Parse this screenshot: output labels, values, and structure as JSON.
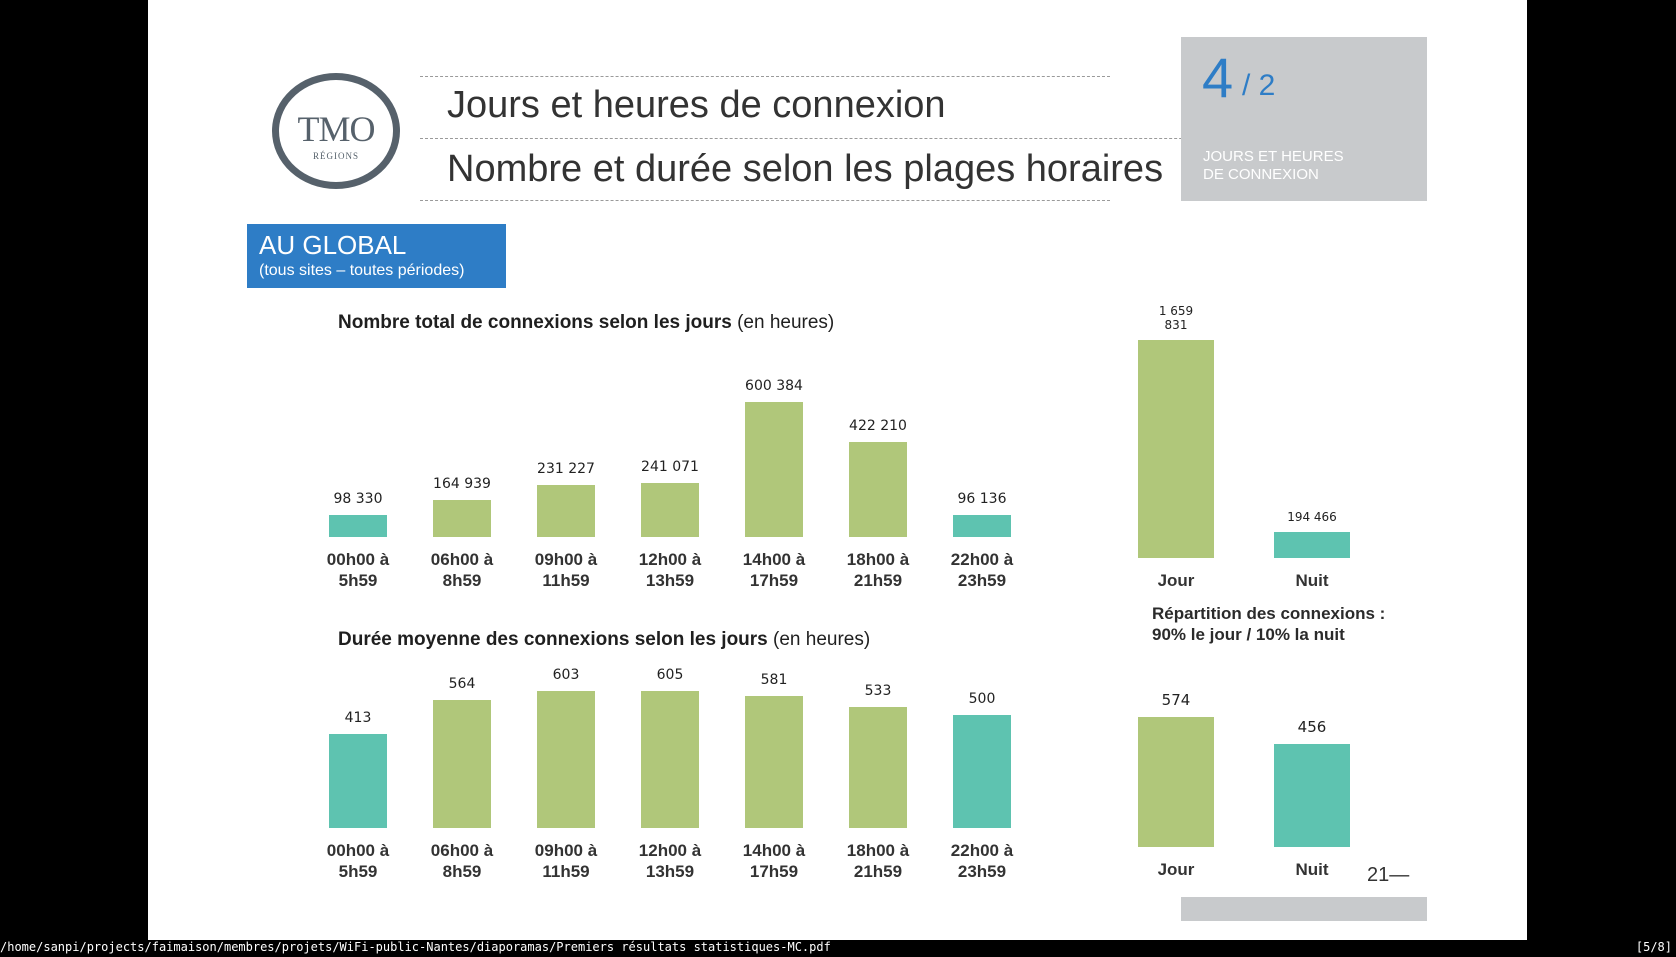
{
  "viewer": {
    "file_path": "/home/sanpi/projects/faimaison/membres/projets/WiFi-public-Nantes/diaporamas/Premiers résultats statistiques-MC.pdf",
    "page_indicator": "[5/8]"
  },
  "slide": {
    "logo": {
      "main": "TMO",
      "sub": "RÉGIONS"
    },
    "title_line1": "Jours et heures de connexion",
    "title_line2": "Nombre et durée selon les plages horaires",
    "section": {
      "number": "4",
      "total": "/ 2",
      "label_line1": "JOURS ET HEURES",
      "label_line2": "DE CONNEXION"
    },
    "global": {
      "title": "AU GLOBAL",
      "subtitle": "(tous sites – toutes périodes)"
    },
    "chart1_title_bold": "Nombre total de connexions selon les jours",
    "chart1_title_normal": " (en heures)",
    "chart2_title_bold": "Durée moyenne des connexions selon les jours",
    "chart2_title_normal": " (en heures)",
    "repartition_line1": "Répartition des connexions :",
    "repartition_line2": "90% le jour / 10% la nuit",
    "page_number": "21—"
  },
  "colors": {
    "green": "#b0c77a",
    "teal": "#5ec3b0",
    "blue": "#2e7dc6",
    "grey_box": "#c8cacc"
  },
  "chart_data": [
    {
      "type": "bar",
      "title": "Nombre total de connexions selon les jours (en heures)",
      "categories": [
        "00h00 à\n5h59",
        "06h00 à\n8h59",
        "09h00 à\n11h59",
        "12h00 à\n13h59",
        "14h00 à\n17h59",
        "18h00 à\n21h59",
        "22h00 à\n23h59"
      ],
      "values": [
        98330,
        164939,
        231227,
        241071,
        600384,
        422210,
        96136
      ],
      "value_labels": [
        "98 330",
        "164 939",
        "231 227",
        "241 071",
        "600 384",
        "422 210",
        "96 136"
      ],
      "bar_colors": [
        "teal",
        "green",
        "green",
        "green",
        "green",
        "green",
        "teal"
      ],
      "ylim": [
        0,
        600384
      ]
    },
    {
      "type": "bar",
      "title": "Durée moyenne des connexions selon les jours (en heures)",
      "categories": [
        "00h00 à\n5h59",
        "06h00 à\n8h59",
        "09h00 à\n11h59",
        "12h00 à\n13h59",
        "14h00 à\n17h59",
        "18h00 à\n21h59",
        "22h00 à\n23h59"
      ],
      "values": [
        413,
        564,
        603,
        605,
        581,
        533,
        500
      ],
      "value_labels": [
        "413",
        "564",
        "603",
        "605",
        "581",
        "533",
        "500"
      ],
      "bar_colors": [
        "teal",
        "green",
        "green",
        "green",
        "green",
        "green",
        "teal"
      ],
      "ylim": [
        0,
        605
      ]
    },
    {
      "type": "bar",
      "categories": [
        "Jour",
        "Nuit"
      ],
      "values": [
        1659831,
        194466
      ],
      "value_labels": [
        "1 659\n831",
        "194 466"
      ],
      "bar_colors": [
        "green",
        "teal"
      ],
      "ylim": [
        0,
        1659831
      ]
    },
    {
      "type": "bar",
      "categories": [
        "Jour",
        "Nuit"
      ],
      "values": [
        574,
        456
      ],
      "value_labels": [
        "574",
        "456"
      ],
      "bar_colors": [
        "green",
        "teal"
      ],
      "ylim": [
        0,
        574
      ]
    }
  ]
}
